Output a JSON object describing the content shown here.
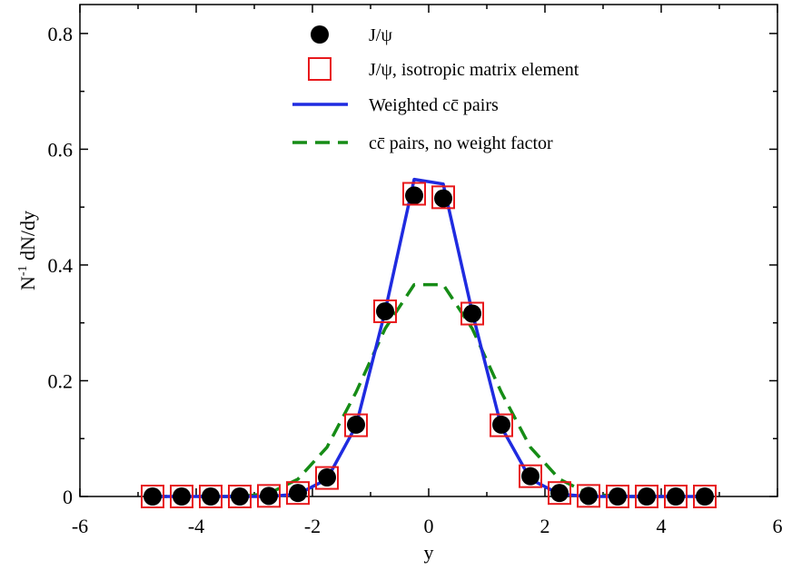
{
  "chart_data": {
    "type": "line",
    "title": "",
    "xlabel": "y",
    "ylabel": "N-1 dN/dy",
    "ylabel_parts": {
      "base": "N",
      "sup": "-1",
      "rest": " dN/dy"
    },
    "xlim": [
      -6,
      6
    ],
    "ylim": [
      0,
      0.85
    ],
    "xticks": [
      -6,
      -4,
      -2,
      0,
      2,
      4,
      6
    ],
    "xtick_labels": [
      "-6",
      "-4",
      "-2",
      "0",
      "2",
      "4",
      "6"
    ],
    "yticks": [
      0,
      0.2,
      0.4,
      0.6,
      0.8
    ],
    "ytick_labels": [
      "0",
      "0.2",
      "0.4",
      "0.6",
      "0.8"
    ],
    "grid": false,
    "legend_position": "top-center",
    "legend": [
      {
        "label": "J/ψ",
        "style": "filled-circle",
        "color": "#000000"
      },
      {
        "label": "J/ψ, isotropic matrix element",
        "style": "open-square",
        "color": "#e8191c"
      },
      {
        "label": "Weighted cc̄ pairs",
        "style": "solid-line",
        "color": "#1f2be0"
      },
      {
        "label": "cc̄ pairs, no weight factor",
        "style": "dashed-line",
        "color": "#168c16"
      }
    ],
    "series": [
      {
        "name": "J/ψ",
        "style": "filled-circle",
        "color": "#000000",
        "x": [
          -4.75,
          -4.25,
          -3.75,
          -3.25,
          -2.75,
          -2.25,
          -1.75,
          -1.25,
          -0.75,
          -0.25,
          0.25,
          0.75,
          1.25,
          1.75,
          2.25,
          2.75,
          3.25,
          3.75,
          4.25,
          4.75
        ],
        "y": [
          0.0,
          0.0,
          0.0,
          0.0,
          0.001,
          0.006,
          0.033,
          0.124,
          0.32,
          0.52,
          0.515,
          0.316,
          0.124,
          0.035,
          0.006,
          0.001,
          0.0,
          0.0,
          0.0,
          0.0
        ]
      },
      {
        "name": "J/ψ, isotropic matrix element",
        "style": "open-square",
        "color": "#e8191c",
        "x": [
          -4.75,
          -4.25,
          -3.75,
          -3.25,
          -2.75,
          -2.25,
          -1.75,
          -1.25,
          -0.75,
          -0.25,
          0.25,
          0.75,
          1.25,
          1.75,
          2.25,
          2.75,
          3.25,
          3.75,
          4.25,
          4.75
        ],
        "y": [
          0.0,
          0.0,
          0.0,
          0.0,
          0.001,
          0.006,
          0.032,
          0.123,
          0.32,
          0.523,
          0.517,
          0.316,
          0.123,
          0.035,
          0.006,
          0.001,
          0.0,
          0.0,
          0.0,
          0.0
        ]
      },
      {
        "name": "Weighted cc̄ pairs",
        "style": "solid-line",
        "color": "#1f2be0",
        "x": [
          -4.75,
          -4.25,
          -3.75,
          -3.25,
          -2.75,
          -2.25,
          -1.75,
          -1.25,
          -0.75,
          -0.25,
          0.25,
          0.75,
          1.25,
          1.75,
          2.25,
          2.75,
          3.25,
          3.75,
          4.25,
          4.75
        ],
        "y": [
          0.0,
          0.0,
          0.0,
          0.0,
          0.0,
          0.004,
          0.03,
          0.122,
          0.32,
          0.548,
          0.54,
          0.318,
          0.12,
          0.03,
          0.004,
          0.0,
          0.0,
          0.0,
          0.0,
          0.0
        ]
      },
      {
        "name": "cc̄ pairs, no weight factor",
        "style": "dashed-line",
        "color": "#168c16",
        "x": [
          -4.75,
          -4.25,
          -3.75,
          -3.25,
          -2.75,
          -2.25,
          -1.75,
          -1.25,
          -0.75,
          -0.25,
          0.25,
          0.75,
          1.25,
          1.75,
          2.25,
          2.75,
          3.25,
          3.75,
          4.25,
          4.75
        ],
        "y": [
          0.0,
          0.0,
          0.0,
          0.0,
          0.005,
          0.03,
          0.085,
          0.18,
          0.29,
          0.366,
          0.366,
          0.29,
          0.18,
          0.085,
          0.03,
          0.005,
          0.0,
          0.0,
          0.0,
          0.0
        ]
      }
    ]
  }
}
